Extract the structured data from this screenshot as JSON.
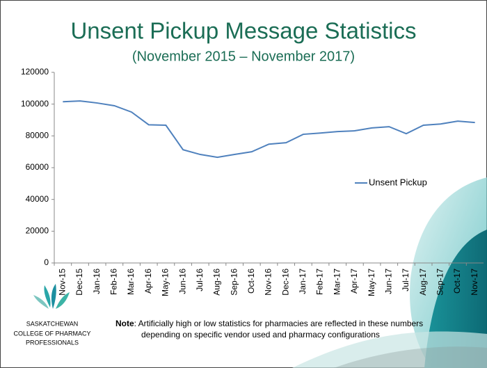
{
  "chart_data": {
    "type": "line",
    "title": "Unsent Pickup Message Statistics",
    "subtitle": "(November 2015 – November 2017)",
    "categories": [
      "Nov-15",
      "Dec-15",
      "Jan-16",
      "Feb-16",
      "Mar-16",
      "Apr-16",
      "May-16",
      "Jun-16",
      "Jul-16",
      "Aug-16",
      "Sep-16",
      "Oct-16",
      "Nov-16",
      "Dec-16",
      "Jan-17",
      "Feb-17",
      "Mar-17",
      "Apr-17",
      "May-17",
      "Jun-17",
      "Jul-17",
      "Aug-17",
      "Sep-17",
      "Oct-17",
      "Nov-17"
    ],
    "series": [
      {
        "name": "Unsent Pickup",
        "color": "#4f81bd",
        "values": [
          101500,
          102000,
          100700,
          99000,
          95000,
          87000,
          86700,
          71300,
          68300,
          66500,
          68300,
          70000,
          74800,
          75700,
          81000,
          81800,
          82700,
          83200,
          85000,
          85800,
          81400,
          86700,
          87500,
          89300,
          88400
        ]
      }
    ],
    "ylim": [
      0,
      120000
    ],
    "yticks": [
      0,
      20000,
      40000,
      60000,
      80000,
      100000,
      120000
    ],
    "grid": false,
    "legend": "right"
  },
  "logo": {
    "lines": [
      "SASKATCHEWAN",
      "COLLEGE OF PHARMACY",
      "PROFESSIONALS"
    ]
  },
  "note": {
    "label": "Note",
    "text": ": Artificially high or low statistics for pharmacies are reflected in these numbers",
    "text2": "depending on specific vendor used and pharmacy configurations"
  }
}
